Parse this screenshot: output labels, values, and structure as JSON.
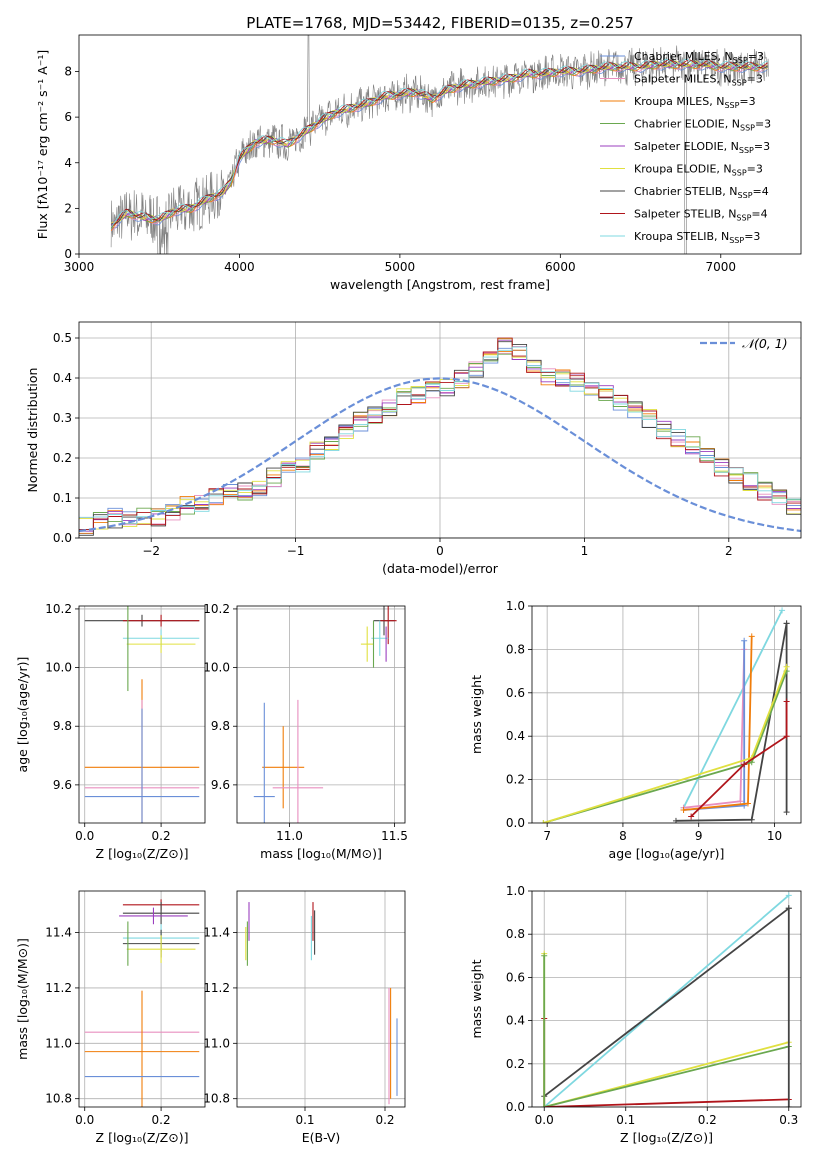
{
  "chart_data": [
    {
      "type": "line",
      "title": "PLATE=1768, MJD=53442, FIBERID=0135, z=0.257",
      "xlabel": "wavelength [Angstrom, rest frame]",
      "ylabel": "Flux [fλ10⁻¹⁷ erg cm⁻² s⁻¹ A⁻¹]",
      "xlim": [
        3000,
        7500
      ],
      "ylim": [
        0,
        9.6
      ],
      "xticks": [
        "3000",
        "4000",
        "5000",
        "6000",
        "7000"
      ],
      "yticks": [
        "0",
        "2",
        "4",
        "6",
        "8"
      ],
      "grid": false,
      "legend": "upper right",
      "legend_entries": [
        {
          "name": "Chabrier MILES, N",
          "sub": "SSP",
          "eq": "=3",
          "color": "#6a8fd8"
        },
        {
          "name": "Salpeter MILES, N",
          "sub": "SSP",
          "eq": "=3",
          "color": "#e88fbf"
        },
        {
          "name": "Kroupa MILES, N",
          "sub": "SSP",
          "eq": "=3",
          "color": "#f07d0a"
        },
        {
          "name": "Chabrier ELODIE, N",
          "sub": "SSP",
          "eq": "=3",
          "color": "#6aa84f"
        },
        {
          "name": "Salpeter ELODIE, N",
          "sub": "SSP",
          "eq": "=3",
          "color": "#9b3fbf"
        },
        {
          "name": "Kroupa ELODIE, N",
          "sub": "SSP",
          "eq": "=3",
          "color": "#e0e040"
        },
        {
          "name": "Chabrier STELIB, N",
          "sub": "SSP",
          "eq": "=4",
          "color": "#444444"
        },
        {
          "name": "Salpeter STELIB, N",
          "sub": "SSP",
          "eq": "=4",
          "color": "#b0151b"
        },
        {
          "name": "Kroupa STELIB, N",
          "sub": "SSP",
          "eq": "=3",
          "color": "#7fd8e0"
        }
      ],
      "data_color": "#808080",
      "model_knots": [
        [
          3200,
          1.2
        ],
        [
          3300,
          1.8
        ],
        [
          3400,
          1.6
        ],
        [
          3500,
          1.5
        ],
        [
          3600,
          1.9
        ],
        [
          3700,
          2.0
        ],
        [
          3800,
          2.4
        ],
        [
          3900,
          2.7
        ],
        [
          3950,
          3.2
        ],
        [
          4000,
          4.2
        ],
        [
          4100,
          4.9
        ],
        [
          4200,
          5.0
        ],
        [
          4300,
          4.8
        ],
        [
          4400,
          5.3
        ],
        [
          4500,
          5.8
        ],
        [
          4600,
          6.2
        ],
        [
          4700,
          6.4
        ],
        [
          4800,
          6.6
        ],
        [
          4900,
          6.9
        ],
        [
          5000,
          7.0
        ],
        [
          5100,
          7.1
        ],
        [
          5200,
          6.8
        ],
        [
          5300,
          7.2
        ],
        [
          5400,
          7.4
        ],
        [
          5500,
          7.5
        ],
        [
          5600,
          7.6
        ],
        [
          5700,
          7.7
        ],
        [
          5800,
          7.9
        ],
        [
          5900,
          7.9
        ],
        [
          6000,
          8.0
        ],
        [
          6100,
          8.0
        ],
        [
          6200,
          8.1
        ],
        [
          6300,
          8.2
        ],
        [
          6400,
          8.2
        ],
        [
          6500,
          8.2
        ],
        [
          6600,
          8.3
        ],
        [
          6700,
          8.3
        ],
        [
          6800,
          8.3
        ],
        [
          6900,
          8.3
        ],
        [
          7000,
          8.2
        ],
        [
          7100,
          8.2
        ],
        [
          7200,
          8.2
        ],
        [
          7300,
          8.2
        ]
      ]
    },
    {
      "type": "line",
      "xlabel": "(data-model)/error",
      "ylabel": "Normed distribution",
      "xlim": [
        -2.5,
        2.5
      ],
      "ylim": [
        0,
        0.54
      ],
      "xticks": [
        "−2",
        "−1",
        "0",
        "1",
        "2"
      ],
      "yticks": [
        "0.0",
        "0.1",
        "0.2",
        "0.3",
        "0.4",
        "0.5"
      ],
      "grid": true,
      "legend": "upper right",
      "legend_entries": [
        {
          "name": "𝒩(0, 1)",
          "color": "#6a8fd8",
          "style": "dashed"
        }
      ],
      "bin_width": 0.1,
      "base_hist": [
        0.03,
        0.04,
        0.05,
        0.05,
        0.05,
        0.05,
        0.06,
        0.08,
        0.09,
        0.1,
        0.11,
        0.12,
        0.13,
        0.15,
        0.17,
        0.19,
        0.22,
        0.24,
        0.27,
        0.29,
        0.31,
        0.33,
        0.35,
        0.36,
        0.37,
        0.38,
        0.4,
        0.42,
        0.45,
        0.48,
        0.46,
        0.42,
        0.4,
        0.4,
        0.39,
        0.37,
        0.36,
        0.34,
        0.32,
        0.3,
        0.27,
        0.25,
        0.23,
        0.2,
        0.18,
        0.16,
        0.14,
        0.12,
        0.1,
        0.08
      ],
      "series_colors": [
        "#6a8fd8",
        "#e88fbf",
        "#f07d0a",
        "#6aa84f",
        "#9b3fbf",
        "#e0e040",
        "#444444",
        "#b0151b",
        "#7fd8e0"
      ]
    },
    {
      "type": "scatter",
      "xlabel": "Z [log₁₀(Z/Z⊙)]",
      "ylabel": "age  [log₁₀(age/yr)]",
      "xlim": [
        -0.015,
        0.315
      ],
      "ylim": [
        9.47,
        10.21
      ],
      "xticks": [
        "0.0",
        "0.2"
      ],
      "yticks": [
        "9.6",
        "9.8",
        "10.0",
        "10.2"
      ],
      "grid": true,
      "errorbars": [
        {
          "x": 0.15,
          "y": 10.16,
          "xe": 0.15,
          "ye": 0.02,
          "color": "#444444"
        },
        {
          "x": 0.2,
          "y": 10.16,
          "xe": 0.1,
          "ye": 0.02,
          "color": "#b0151b"
        },
        {
          "x": 0.2,
          "y": 10.1,
          "xe": 0.1,
          "ye": 0.03,
          "color": "#7fd8e0"
        },
        {
          "x": 0.2,
          "y": 10.08,
          "xe": 0.09,
          "ye": 0.03,
          "color": "#e0e040"
        },
        {
          "x": 0.113,
          "y": 10.08,
          "xe": 0.0,
          "ye": 0.16,
          "color": "#6aa84f"
        },
        {
          "x": 0.15,
          "y": 9.66,
          "xe": 0.15,
          "ye": 0.3,
          "color": "#f07d0a"
        },
        {
          "x": 0.15,
          "y": 9.59,
          "xe": 0.15,
          "ye": 0.3,
          "color": "#e88fbf"
        },
        {
          "x": 0.15,
          "y": 9.56,
          "xe": 0.15,
          "ye": 0.3,
          "color": "#6a8fd8"
        }
      ]
    },
    {
      "type": "scatter",
      "xlabel": "mass [log₁₀(M/M⊙)]",
      "ylabel": "",
      "xlim": [
        10.75,
        11.55
      ],
      "ylim": [
        9.47,
        10.21
      ],
      "xticks": [
        "11.0",
        "11.5"
      ],
      "yticks": [
        "9.6",
        "9.8",
        "10.0",
        "10.2"
      ],
      "grid": true,
      "errorbars": [
        {
          "x": 11.45,
          "y": 10.16,
          "xe": 0.05,
          "ye": 0.05,
          "color": "#444444"
        },
        {
          "x": 11.47,
          "y": 10.16,
          "xe": 0.04,
          "ye": 0.08,
          "color": "#b0151b"
        },
        {
          "x": 11.43,
          "y": 10.1,
          "xe": 0.04,
          "ye": 0.06,
          "color": "#7fd8e0"
        },
        {
          "x": 11.37,
          "y": 10.08,
          "xe": 0.03,
          "ye": 0.06,
          "color": "#e0e040"
        },
        {
          "x": 11.4,
          "y": 10.08,
          "xe": 0.0,
          "ye": 0.08,
          "color": "#6aa84f"
        },
        {
          "x": 11.46,
          "y": 10.08,
          "xe": 0.0,
          "ye": 0.06,
          "color": "#9b3fbf"
        },
        {
          "x": 10.97,
          "y": 9.66,
          "xe": 0.1,
          "ye": 0.14,
          "color": "#f07d0a"
        },
        {
          "x": 11.04,
          "y": 9.59,
          "xe": 0.12,
          "ye": 0.3,
          "color": "#e88fbf"
        },
        {
          "x": 10.88,
          "y": 9.56,
          "xe": 0.05,
          "ye": 0.32,
          "color": "#6a8fd8"
        }
      ]
    },
    {
      "type": "line",
      "xlabel": "age  [log₁₀(age/yr)]",
      "ylabel": "mass weight",
      "xlim": [
        6.8,
        10.35
      ],
      "ylim": [
        0,
        1.0
      ],
      "xticks": [
        "7",
        "8",
        "9",
        "10"
      ],
      "yticks": [
        "0.0",
        "0.2",
        "0.4",
        "0.6",
        "0.8",
        "1.0"
      ],
      "grid": true,
      "series": [
        {
          "color": "#444444",
          "points": [
            [
              8.7,
              0.01
            ],
            [
              9.7,
              0.015
            ],
            [
              10.16,
              0.92
            ]
          ]
        },
        {
          "color": "#444444",
          "points": [
            [
              10.16,
              0.92
            ],
            [
              10.16,
              0.05
            ]
          ]
        },
        {
          "color": "#7fd8e0",
          "points": [
            [
              8.8,
              0.07
            ],
            [
              10.1,
              0.98
            ]
          ]
        },
        {
          "color": "#e88fbf",
          "points": [
            [
              8.8,
              0.07
            ],
            [
              9.55,
              0.1
            ],
            [
              9.6,
              0.8
            ]
          ]
        },
        {
          "color": "#6a8fd8",
          "points": [
            [
              8.8,
              0.06
            ],
            [
              9.6,
              0.08
            ],
            [
              9.6,
              0.84
            ]
          ]
        },
        {
          "color": "#f07d0a",
          "points": [
            [
              8.8,
              0.06
            ],
            [
              9.65,
              0.09
            ],
            [
              9.7,
              0.86
            ]
          ]
        },
        {
          "color": "#6aa84f",
          "points": [
            [
              6.95,
              0.0
            ],
            [
              9.7,
              0.28
            ],
            [
              10.16,
              0.7
            ]
          ]
        },
        {
          "color": "#e0e040",
          "points": [
            [
              6.95,
              0.0
            ],
            [
              9.7,
              0.3
            ],
            [
              10.16,
              0.72
            ]
          ]
        },
        {
          "color": "#b0151b",
          "points": [
            [
              8.9,
              0.03
            ],
            [
              9.6,
              0.27
            ],
            [
              10.16,
              0.4
            ],
            [
              10.16,
              0.56
            ]
          ]
        }
      ]
    },
    {
      "type": "scatter",
      "xlabel": "Z [log₁₀(Z/Z⊙)]",
      "ylabel": "mass [log₁₀(M/M⊙)]",
      "xlim": [
        -0.015,
        0.315
      ],
      "ylim": [
        10.77,
        11.55
      ],
      "xticks": [
        "0.0",
        "0.2"
      ],
      "yticks": [
        "10.8",
        "11.0",
        "11.2",
        "11.4"
      ],
      "grid": true,
      "errorbars": [
        {
          "x": 0.2,
          "y": 11.5,
          "xe": 0.1,
          "ye": 0.02,
          "color": "#b0151b"
        },
        {
          "x": 0.2,
          "y": 11.47,
          "xe": 0.1,
          "ye": 0.04,
          "color": "#444444"
        },
        {
          "x": 0.18,
          "y": 11.46,
          "xe": 0.09,
          "ye": 0.03,
          "color": "#9b3fbf"
        },
        {
          "x": 0.2,
          "y": 11.38,
          "xe": 0.1,
          "ye": 0.05,
          "color": "#7fd8e0"
        },
        {
          "x": 0.2,
          "y": 11.36,
          "xe": 0.1,
          "ye": 0.05,
          "color": "#444444"
        },
        {
          "x": 0.2,
          "y": 11.34,
          "xe": 0.09,
          "ye": 0.05,
          "color": "#e0e040"
        },
        {
          "x": 0.113,
          "y": 11.36,
          "xe": 0.0,
          "ye": 0.08,
          "color": "#6aa84f"
        },
        {
          "x": 0.15,
          "y": 11.04,
          "xe": 0.15,
          "ye": 0.0,
          "color": "#e88fbf"
        },
        {
          "x": 0.15,
          "y": 10.97,
          "xe": 0.15,
          "ye": 0.22,
          "color": "#f07d0a"
        },
        {
          "x": 0.15,
          "y": 10.88,
          "xe": 0.15,
          "ye": 0.0,
          "color": "#6a8fd8"
        }
      ]
    },
    {
      "type": "scatter",
      "xlabel": "E(B-V)",
      "ylabel": "",
      "xlim": [
        0.015,
        0.225
      ],
      "ylim": [
        10.77,
        11.55
      ],
      "xticks": [
        "0.1",
        "0.2"
      ],
      "yticks": [
        "10.8",
        "11.0",
        "11.2",
        "11.4"
      ],
      "grid": true,
      "errorbars": [
        {
          "x": 0.03,
          "y": 11.44,
          "xe": 0.0,
          "ye": 0.07,
          "color": "#9b3fbf"
        },
        {
          "x": 0.028,
          "y": 11.36,
          "xe": 0.0,
          "ye": 0.08,
          "color": "#6aa84f"
        },
        {
          "x": 0.026,
          "y": 11.36,
          "xe": 0.0,
          "ye": 0.06,
          "color": "#e0e040"
        },
        {
          "x": 0.11,
          "y": 11.44,
          "xe": 0.0,
          "ye": 0.07,
          "color": "#b0151b"
        },
        {
          "x": 0.112,
          "y": 11.4,
          "xe": 0.0,
          "ye": 0.08,
          "color": "#444444"
        },
        {
          "x": 0.108,
          "y": 11.38,
          "xe": 0.0,
          "ye": 0.08,
          "color": "#7fd8e0"
        },
        {
          "x": 0.205,
          "y": 10.99,
          "xe": 0.0,
          "ye": 0.21,
          "color": "#e88fbf"
        },
        {
          "x": 0.207,
          "y": 11.0,
          "xe": 0.0,
          "ye": 0.2,
          "color": "#f07d0a"
        },
        {
          "x": 0.215,
          "y": 10.95,
          "xe": 0.0,
          "ye": 0.14,
          "color": "#6a8fd8"
        }
      ]
    },
    {
      "type": "line",
      "xlabel": "Z [log₁₀(Z/Z⊙)]",
      "ylabel": "mass weight",
      "xlim": [
        -0.015,
        0.315
      ],
      "ylim": [
        0,
        1.0
      ],
      "xticks": [
        "0.0",
        "0.1",
        "0.2",
        "0.3"
      ],
      "yticks": [
        "0.0",
        "0.2",
        "0.4",
        "0.6",
        "0.8",
        "1.0"
      ],
      "grid": true,
      "series": [
        {
          "color": "#7fd8e0",
          "points": [
            [
              0.0,
              0.0
            ],
            [
              0.3,
              0.98
            ]
          ]
        },
        {
          "color": "#444444",
          "points": [
            [
              0.0,
              0.05
            ],
            [
              0.3,
              0.92
            ]
          ]
        },
        {
          "color": "#e0e040",
          "points": [
            [
              0.0,
              0.0
            ],
            [
              0.3,
              0.3
            ]
          ]
        },
        {
          "color": "#6aa84f",
          "points": [
            [
              0.0,
              0.0
            ],
            [
              0.3,
              0.28
            ]
          ]
        },
        {
          "color": "#b0151b",
          "points": [
            [
              0.0,
              0.0
            ],
            [
              0.3,
              0.035
            ]
          ]
        },
        {
          "color": "#b0151b",
          "points": [
            [
              0.0,
              0.0
            ],
            [
              0.0,
              0.41
            ]
          ]
        },
        {
          "color": "#e0e040",
          "points": [
            [
              0.0,
              0.0
            ],
            [
              0.0,
              0.71
            ]
          ]
        },
        {
          "color": "#6aa84f",
          "points": [
            [
              0.0,
              0.0
            ],
            [
              0.0,
              0.7
            ]
          ]
        },
        {
          "color": "#444444",
          "points": [
            [
              0.3,
              0.0
            ],
            [
              0.3,
              0.92
            ]
          ]
        }
      ]
    }
  ]
}
